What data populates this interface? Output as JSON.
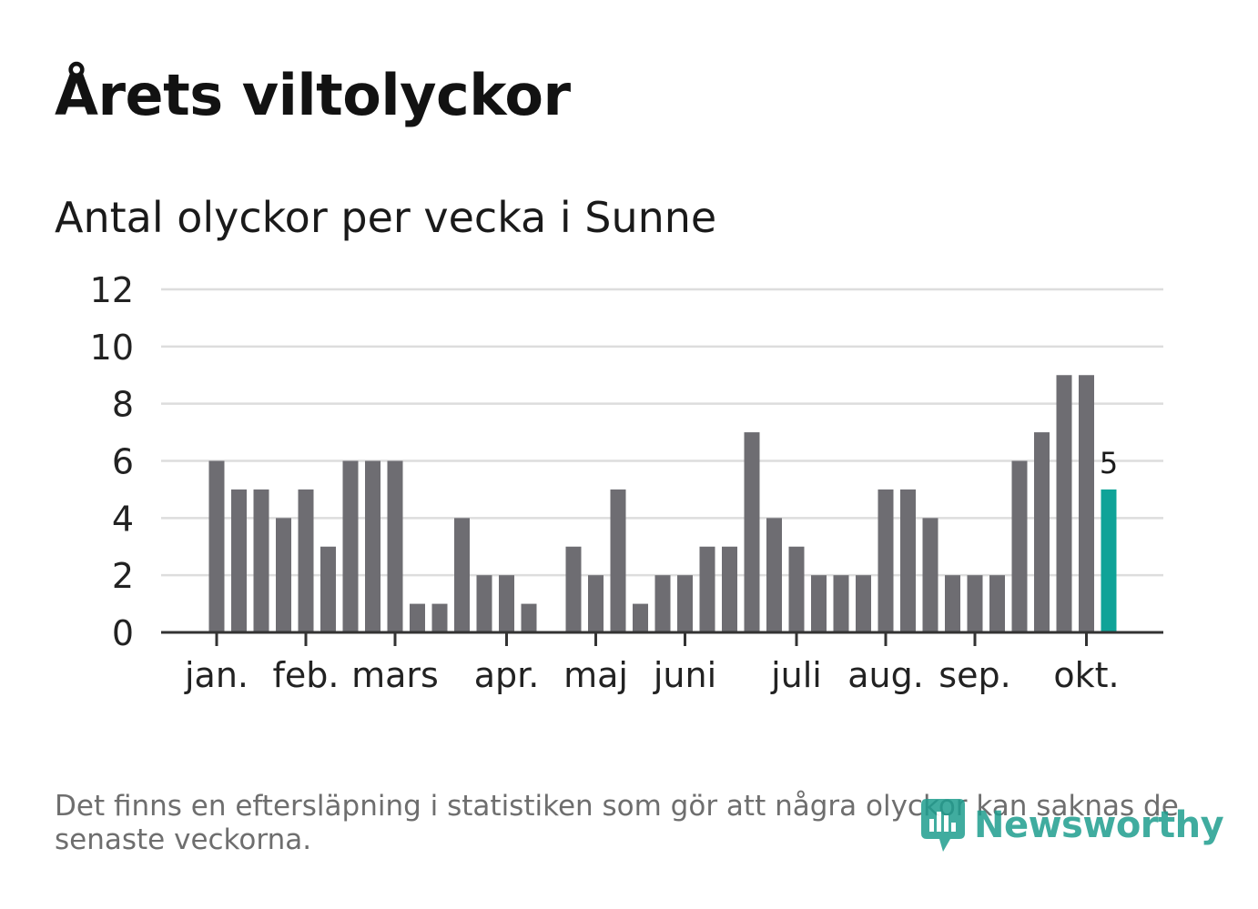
{
  "header": {
    "title": "Årets viltolyckor",
    "subtitle": "Antal olyckor per vecka i Sunne"
  },
  "footer": {
    "note": "Det finns en eftersläpning i statistiken som gör att några olyckor kan saknas de senaste veckorna.",
    "brand": "Newsworthy"
  },
  "colors": {
    "bar": "#6e6d72",
    "highlight": "#0fa398",
    "grid": "#dddddd",
    "axis": "#333333",
    "brand": "#1f9e8f"
  },
  "chart_data": {
    "type": "bar",
    "title": "Årets viltolyckor",
    "subtitle": "Antal olyckor per vecka i Sunne",
    "xlabel": "",
    "ylabel": "",
    "ylim": [
      0,
      12
    ],
    "yticks": [
      0,
      2,
      4,
      6,
      8,
      10,
      12
    ],
    "grid": true,
    "weeks": [
      1,
      2,
      3,
      4,
      5,
      6,
      7,
      8,
      9,
      10,
      11,
      12,
      13,
      14,
      15,
      16,
      17,
      18,
      19,
      20,
      21,
      22,
      23,
      24,
      25,
      26,
      27,
      28,
      29,
      30,
      31,
      32,
      33,
      34,
      35,
      36,
      37,
      38,
      39,
      40,
      41
    ],
    "values": [
      6,
      5,
      5,
      4,
      5,
      3,
      6,
      6,
      6,
      1,
      1,
      4,
      2,
      2,
      1,
      0,
      3,
      2,
      5,
      1,
      2,
      2,
      3,
      3,
      7,
      4,
      3,
      2,
      2,
      2,
      5,
      5,
      4,
      2,
      2,
      2,
      6,
      7,
      9,
      9,
      5
    ],
    "highlight_index": 40,
    "highlight_label": "5",
    "month_ticks": [
      {
        "label": "jan.",
        "week": 1
      },
      {
        "label": "feb.",
        "week": 5
      },
      {
        "label": "mars",
        "week": 9
      },
      {
        "label": "apr.",
        "week": 14
      },
      {
        "label": "maj",
        "week": 18
      },
      {
        "label": "juni",
        "week": 22
      },
      {
        "label": "juli",
        "week": 27
      },
      {
        "label": "aug.",
        "week": 31
      },
      {
        "label": "sep.",
        "week": 35
      },
      {
        "label": "okt.",
        "week": 40
      }
    ]
  }
}
